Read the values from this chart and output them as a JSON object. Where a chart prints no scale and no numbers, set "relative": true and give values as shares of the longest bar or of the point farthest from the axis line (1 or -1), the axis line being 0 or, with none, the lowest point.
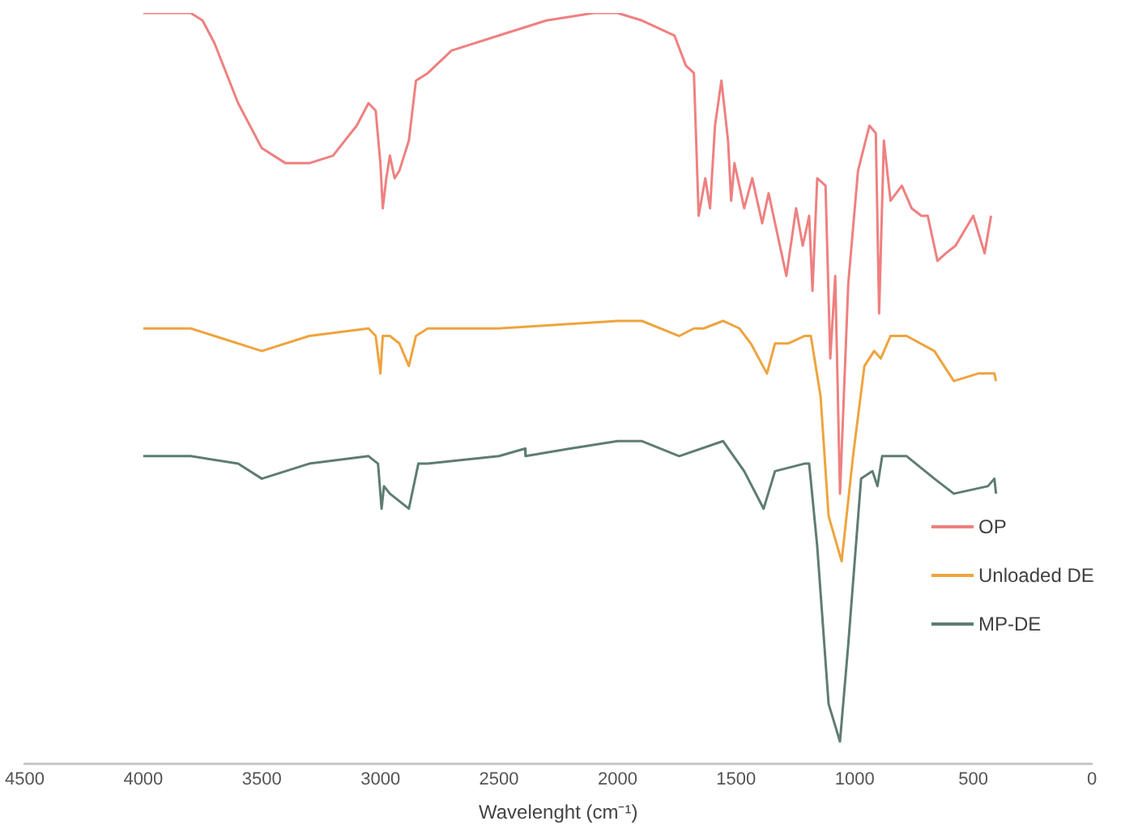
{
  "chart_data": {
    "type": "line",
    "relative": true,
    "xlabel": "Wavelenght (cm⁻¹)",
    "xlim": [
      4500,
      0
    ],
    "xticks": [
      4500,
      4000,
      3500,
      3000,
      2500,
      2000,
      1500,
      1000,
      500,
      0
    ],
    "grid": false,
    "legend": "bottom right",
    "marker": "none",
    "line_style": "solid",
    "series": [
      {
        "name": "OP",
        "color": "#ef8080",
        "x": [
          4000,
          3800,
          3750,
          3700,
          3600,
          3500,
          3400,
          3300,
          3200,
          3100,
          3050,
          3020,
          3000,
          2990,
          2975,
          2960,
          2940,
          2920,
          2900,
          2880,
          2850,
          2800,
          2700,
          2500,
          2300,
          2100,
          2000,
          1897,
          1760,
          1712,
          1678,
          1658,
          1630,
          1610,
          1589,
          1562,
          1534,
          1521,
          1507,
          1466,
          1432,
          1390,
          1363,
          1329,
          1288,
          1247,
          1219,
          1192,
          1178,
          1158,
          1123,
          1103,
          1082,
          1062,
          1027,
          986,
          938,
          911,
          897,
          877,
          849,
          801,
          760,
          719,
          692,
          651,
          616,
          575,
          500,
          452,
          425
        ],
        "values": [
          1.0,
          1.0,
          0.99,
          0.96,
          0.88,
          0.82,
          0.8,
          0.8,
          0.81,
          0.85,
          0.88,
          0.87,
          0.8,
          0.74,
          0.78,
          0.81,
          0.78,
          0.79,
          0.81,
          0.83,
          0.91,
          0.92,
          0.95,
          0.97,
          0.99,
          1.0,
          1.0,
          0.99,
          0.97,
          0.93,
          0.92,
          0.73,
          0.78,
          0.74,
          0.85,
          0.91,
          0.83,
          0.75,
          0.8,
          0.74,
          0.78,
          0.72,
          0.76,
          0.71,
          0.65,
          0.74,
          0.69,
          0.73,
          0.63,
          0.78,
          0.77,
          0.54,
          0.65,
          0.36,
          0.64,
          0.79,
          0.85,
          0.84,
          0.6,
          0.83,
          0.75,
          0.77,
          0.74,
          0.73,
          0.73,
          0.67,
          0.68,
          0.69,
          0.73,
          0.68,
          0.73
        ]
      },
      {
        "name": "Unloaded DE",
        "color": "#eea43e",
        "x": [
          4000,
          3800,
          3700,
          3500,
          3300,
          3050,
          3020,
          3000,
          2990,
          2960,
          2920,
          2880,
          2850,
          2800,
          2500,
          2000,
          1897,
          1740,
          1678,
          1637,
          1555,
          1486,
          1438,
          1370,
          1336,
          1281,
          1212,
          1185,
          1144,
          1110,
          1055,
          1007,
          959,
          918,
          890,
          849,
          781,
          664,
          582,
          479,
          411,
          404
        ],
        "values": [
          0.58,
          0.58,
          0.57,
          0.55,
          0.57,
          0.58,
          0.57,
          0.52,
          0.57,
          0.57,
          0.56,
          0.53,
          0.57,
          0.58,
          0.58,
          0.59,
          0.59,
          0.57,
          0.58,
          0.58,
          0.59,
          0.58,
          0.56,
          0.52,
          0.56,
          0.56,
          0.57,
          0.57,
          0.49,
          0.33,
          0.27,
          0.41,
          0.53,
          0.55,
          0.54,
          0.57,
          0.57,
          0.55,
          0.51,
          0.52,
          0.52,
          0.51
        ]
      },
      {
        "name": "MP-DE",
        "color": "#5e7d70",
        "x": [
          4000,
          3800,
          3600,
          3500,
          3300,
          3050,
          3010,
          2995,
          2985,
          2960,
          2920,
          2880,
          2840,
          2800,
          2500,
          2390,
          2388,
          2200,
          2000,
          1897,
          1740,
          1555,
          1466,
          1384,
          1336,
          1212,
          1192,
          1158,
          1110,
          1062,
          1027,
          973,
          925,
          904,
          884,
          781,
          664,
          582,
          438,
          411,
          404
        ],
        "values": [
          0.41,
          0.41,
          0.4,
          0.38,
          0.4,
          0.41,
          0.4,
          0.34,
          0.37,
          0.36,
          0.35,
          0.34,
          0.4,
          0.4,
          0.41,
          0.42,
          0.41,
          0.42,
          0.43,
          0.43,
          0.41,
          0.43,
          0.39,
          0.34,
          0.39,
          0.4,
          0.4,
          0.29,
          0.08,
          0.03,
          0.16,
          0.38,
          0.39,
          0.37,
          0.41,
          0.41,
          0.38,
          0.36,
          0.37,
          0.38,
          0.36
        ]
      }
    ]
  }
}
